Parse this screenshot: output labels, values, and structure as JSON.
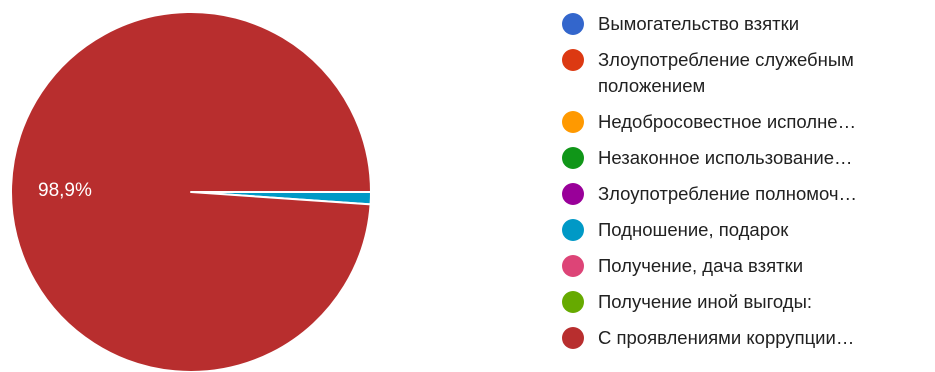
{
  "chart_data": {
    "type": "pie",
    "slices": [
      {
        "label": "Вымогательство взятки",
        "value": 0,
        "color": "#3366cc"
      },
      {
        "label": "Злоупотребление служебным положением",
        "value": 0,
        "color": "#dc3912"
      },
      {
        "label": "Недобросовестное исполне…",
        "value": 0,
        "color": "#ff9900"
      },
      {
        "label": "Незаконное использование…",
        "value": 0,
        "color": "#109618"
      },
      {
        "label": "Злоупотребление полномоч…",
        "value": 0,
        "color": "#990099"
      },
      {
        "label": "Подношение, подарок",
        "value": 1.1,
        "color": "#0099c6"
      },
      {
        "label": "Получение, дача взятки",
        "value": 0,
        "color": "#dd4477"
      },
      {
        "label": "Получение иной выгоды:",
        "value": 0,
        "color": "#66aa00"
      },
      {
        "label": "С проявлениями коррупции…",
        "value": 98.9,
        "color": "#b82e2e"
      }
    ],
    "data_labels": [
      {
        "text": "98,9%",
        "slice": 8
      }
    ],
    "legend_position": "right"
  }
}
